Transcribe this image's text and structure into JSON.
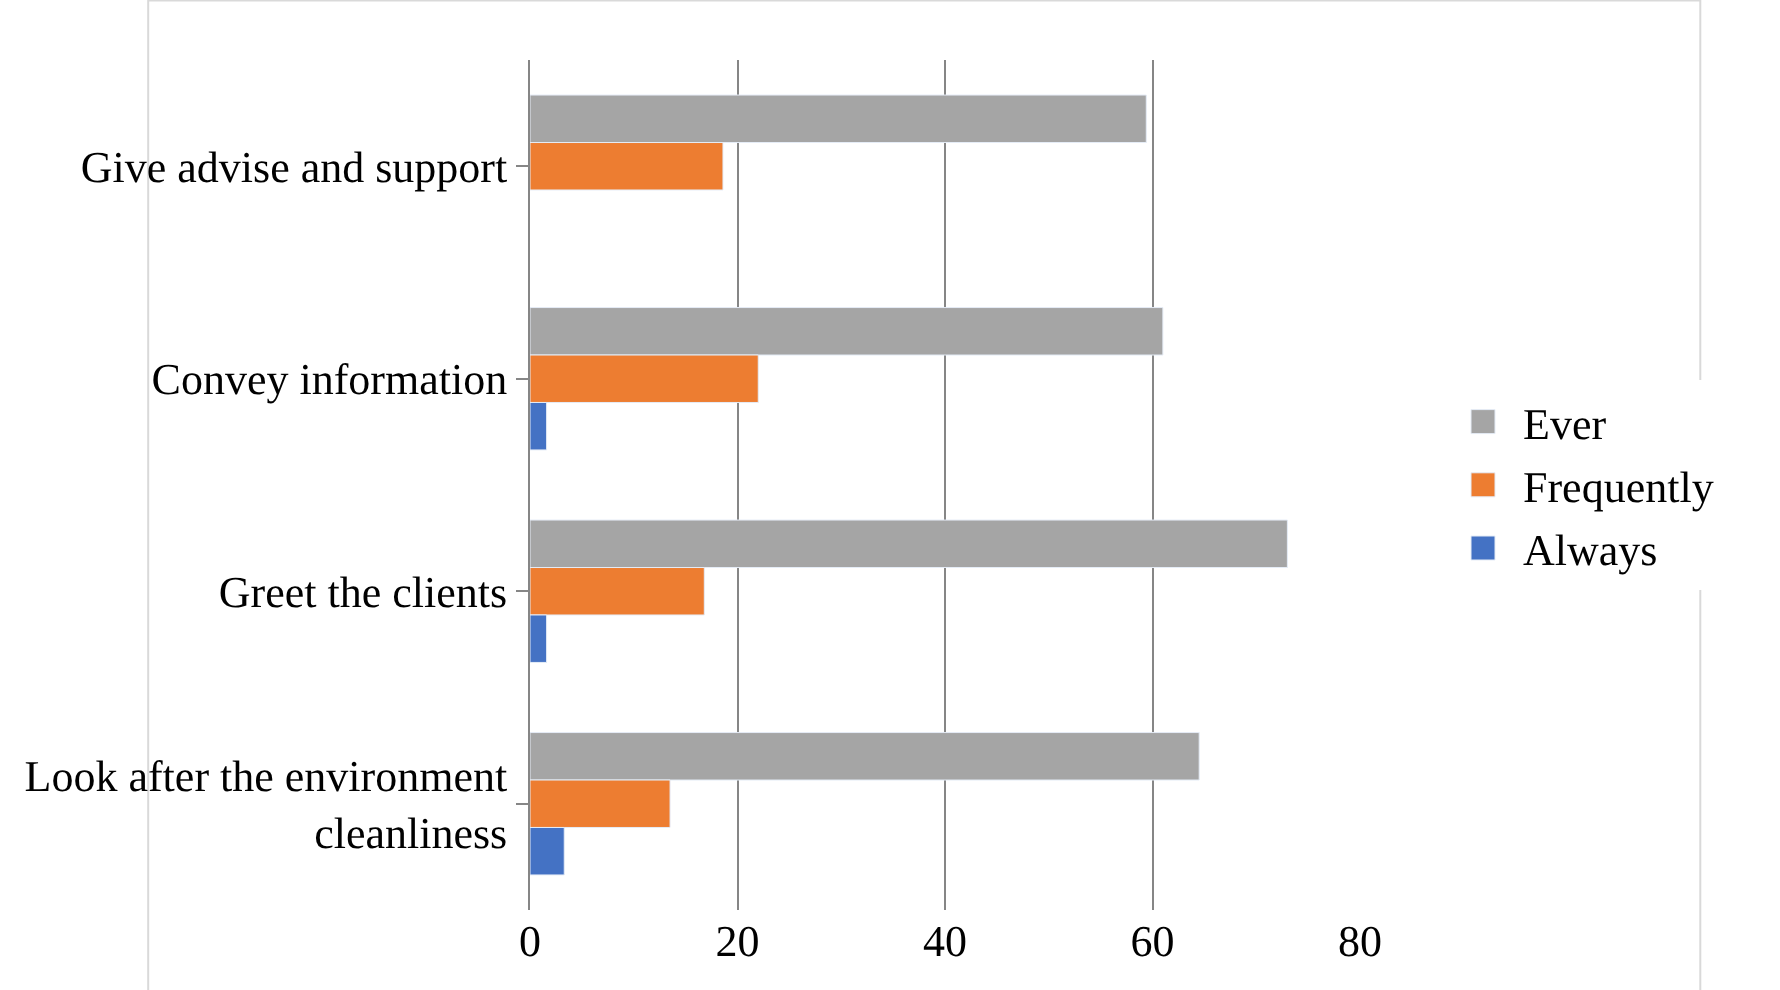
{
  "chart_data": {
    "type": "bar",
    "orientation": "horizontal",
    "categories": [
      "Give advise and support",
      "Convey information",
      "Greet the clients",
      "Look after the environment cleanliness"
    ],
    "series": [
      {
        "name": "Ever",
        "color": "#a5a5a5",
        "values": [
          59.4,
          61,
          73,
          64.5
        ]
      },
      {
        "name": "Frequently",
        "color": "#ed7d31",
        "values": [
          18.6,
          22,
          16.8,
          13.5
        ]
      },
      {
        "name": "Always",
        "color": "#4472c4",
        "values": [
          null,
          1.6,
          1.6,
          3.3
        ]
      }
    ],
    "xlim": [
      0,
      80
    ],
    "xticks": [
      0,
      20,
      40,
      60,
      80
    ],
    "grid": "x",
    "legend": "right"
  }
}
